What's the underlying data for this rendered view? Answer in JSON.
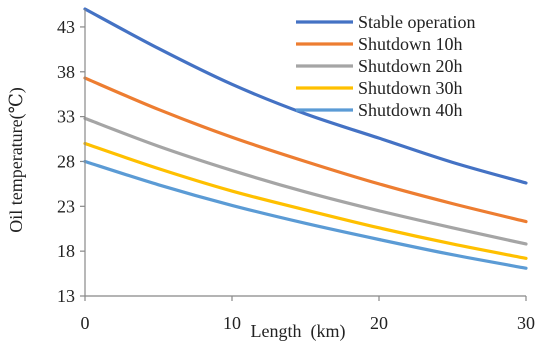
{
  "chart_data": {
    "type": "line",
    "title": "",
    "xlabel": "Length  (km)",
    "ylabel": "Oil temperature(℃)",
    "xlim": [
      0,
      30
    ],
    "ylim": [
      13,
      45
    ],
    "xticks": [
      0,
      10,
      20,
      30
    ],
    "yticks": [
      13,
      18,
      23,
      28,
      33,
      38,
      43
    ],
    "x": [
      0,
      5,
      10,
      15,
      20,
      25,
      30
    ],
    "grid": false,
    "legend": "top-right",
    "series": [
      {
        "name": "Stable operation",
        "color": "#4472C4",
        "values": [
          45.0,
          40.6,
          36.6,
          33.3,
          30.6,
          27.9,
          25.6
        ]
      },
      {
        "name": "Shutdown 10h",
        "color": "#ED7D31",
        "values": [
          37.3,
          33.8,
          30.7,
          28.0,
          25.5,
          23.3,
          21.3
        ]
      },
      {
        "name": "Shutdown 20h",
        "color": "#A5A5A5",
        "values": [
          32.8,
          29.7,
          27.0,
          24.6,
          22.5,
          20.6,
          18.8
        ]
      },
      {
        "name": "Shutdown 30h",
        "color": "#FFC000",
        "values": [
          30.0,
          27.2,
          24.7,
          22.6,
          20.6,
          18.8,
          17.2
        ]
      },
      {
        "name": "Shutdown 40h",
        "color": "#5B9BD5",
        "values": [
          28.0,
          25.4,
          23.1,
          21.1,
          19.3,
          17.6,
          16.1
        ]
      }
    ]
  }
}
